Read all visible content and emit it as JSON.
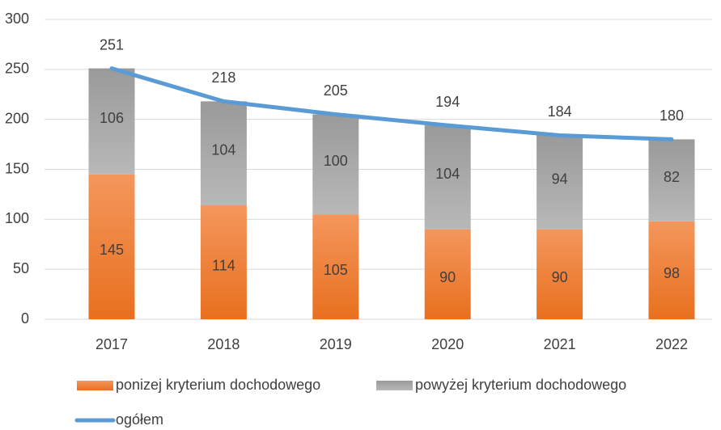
{
  "chart_data": {
    "type": "bar",
    "stacked": true,
    "categories": [
      "2017",
      "2018",
      "2019",
      "2020",
      "2021",
      "2022"
    ],
    "series": [
      {
        "name": "ponizej kryterium dochodowego",
        "kind": "bar",
        "color": "#ed7d31",
        "values": [
          145,
          114,
          105,
          90,
          90,
          98
        ]
      },
      {
        "name": "powyżej kryterium dochodowego",
        "kind": "bar",
        "color": "#a5a5a5",
        "values": [
          106,
          104,
          100,
          104,
          94,
          82
        ]
      },
      {
        "name": "ogółem",
        "kind": "line",
        "color": "#5b9bd5",
        "values": [
          251,
          218,
          205,
          194,
          184,
          180
        ]
      }
    ],
    "ylim": [
      0,
      300
    ],
    "yticks": [
      0,
      50,
      100,
      150,
      200,
      250,
      300
    ],
    "grid": true
  }
}
